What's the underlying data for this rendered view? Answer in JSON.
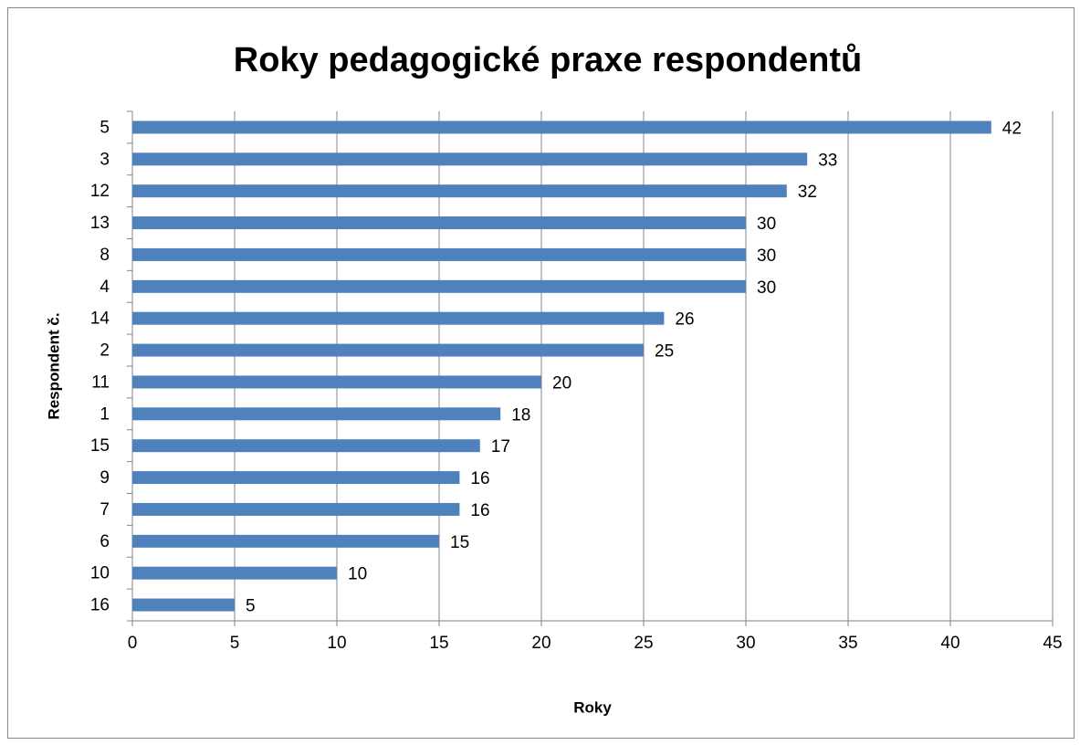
{
  "chart_data": {
    "type": "bar",
    "orientation": "horizontal",
    "title": "Roky pedagogické praxe respondentů",
    "x_label": "Roky",
    "y_label": "Respondent č.",
    "categories": [
      "5",
      "3",
      "12",
      "13",
      "8",
      "4",
      "14",
      "2",
      "11",
      "1",
      "15",
      "9",
      "7",
      "6",
      "10",
      "16"
    ],
    "values": [
      42,
      33,
      32,
      30,
      30,
      30,
      26,
      25,
      20,
      18,
      17,
      16,
      16,
      15,
      10,
      5
    ],
    "color": "#4f81bd",
    "xlim": [
      0,
      45
    ],
    "xticks": [
      0,
      5,
      10,
      15,
      20,
      25,
      30,
      35,
      40,
      45
    ],
    "grid": true
  }
}
